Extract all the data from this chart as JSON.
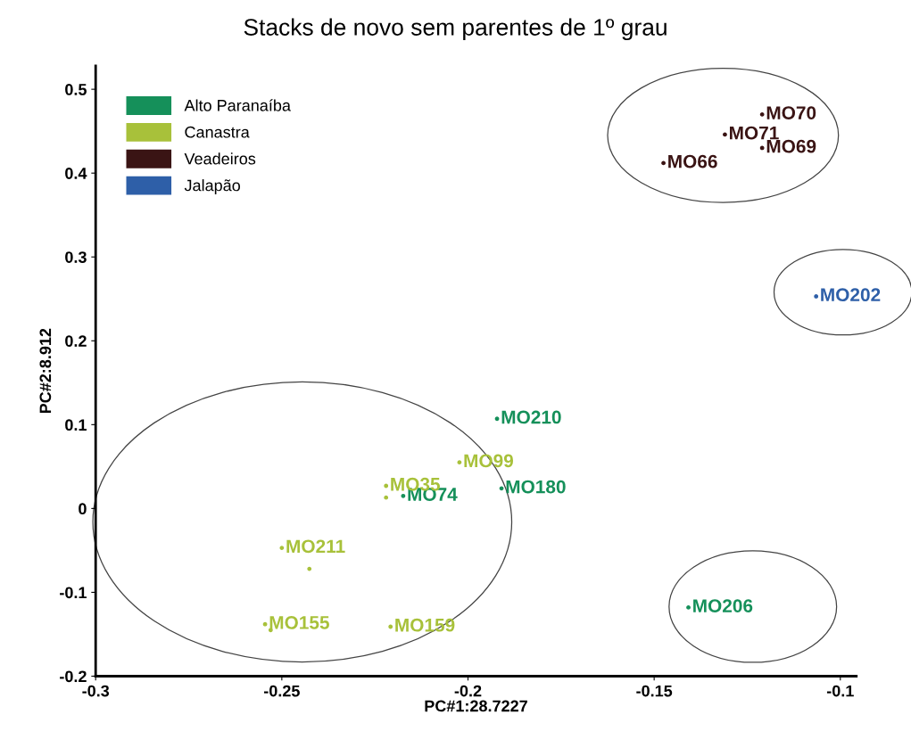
{
  "chart_data": {
    "type": "scatter",
    "title": "Stacks de novo sem parentes de 1º grau",
    "xlabel": "PC#1:28.7227",
    "ylabel": "PC#2:8.912",
    "xlim": [
      -0.3,
      -0.0957
    ],
    "xticks": [
      -0.3,
      -0.25,
      -0.2,
      -0.15,
      -0.1
    ],
    "ylim": [
      -0.2,
      0.528
    ],
    "yticks": [
      -0.2,
      -0.1,
      0,
      0.1,
      0.2,
      0.3,
      0.4,
      0.5
    ],
    "legend": "top left",
    "grid": false,
    "marker": "circle",
    "series": [
      {
        "name": "Alto Paranaíba",
        "color": "#15905a",
        "x": [
          -0.1922,
          -0.191,
          -0.1408,
          -0.2174
        ],
        "values": [
          0.107,
          0.024,
          -0.118,
          0.015
        ],
        "value_labels": [
          "MO210",
          "MO180",
          "MO206",
          "MO74"
        ]
      },
      {
        "name": "Canastra",
        "color": "#a8c13a",
        "x": [
          -0.2023,
          -0.222,
          -0.222,
          -0.25,
          -0.2426,
          -0.2208,
          -0.2545,
          -0.253
        ],
        "values": [
          0.055,
          0.027,
          0.013,
          -0.047,
          -0.072,
          -0.141,
          -0.138,
          -0.145
        ],
        "value_labels": [
          "MO99",
          "MO35",
          null,
          "MO211",
          null,
          "MO159",
          "MO155",
          null
        ]
      },
      {
        "name": "Veadeiros",
        "color": "#3a1414",
        "x": [
          -0.121,
          -0.131,
          -0.121,
          -0.1475
        ],
        "values": [
          0.47,
          0.446,
          0.43,
          0.412
        ],
        "value_labels": [
          "MO70",
          "MO71",
          "MO69",
          "MO66"
        ]
      },
      {
        "name": "Jalapão",
        "color": "#2e5fa8",
        "x": [
          -0.1065
        ],
        "values": [
          0.253
        ],
        "value_labels": [
          "MO202"
        ]
      }
    ]
  }
}
